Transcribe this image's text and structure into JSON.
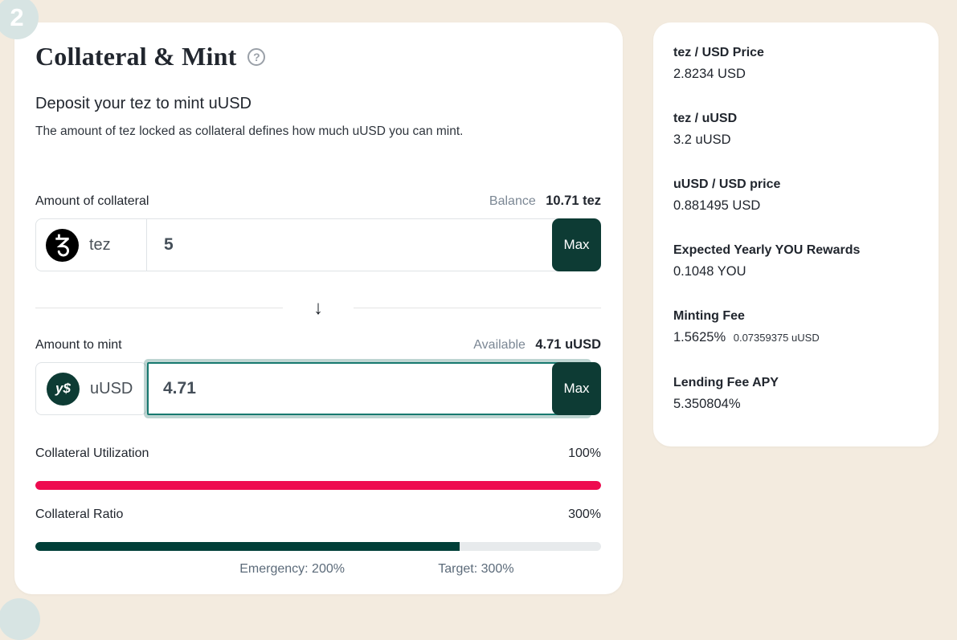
{
  "page": {
    "step_badge": "2"
  },
  "icons": {
    "help_glyph": "?",
    "divider_arrow": "↓",
    "spinner_up": "▲",
    "spinner_down": "▼"
  },
  "main_card": {
    "title": "Collateral & Mint",
    "subtitle": "Deposit your tez to mint uUSD",
    "description": "The amount of tez locked as collateral defines how much uUSD you can mint.",
    "collateral": {
      "label": "Amount of collateral",
      "balance_label": "Balance",
      "balance_value": "10.71 tez",
      "token_symbol": "tez",
      "input_value": "5",
      "max_label": "Max"
    },
    "mint": {
      "label": "Amount to mint",
      "available_label": "Available",
      "available_value": "4.71 uUSD",
      "token_symbol": "uUSD",
      "token_logo_text": "y$",
      "input_value": "4.71",
      "max_label": "Max"
    },
    "utilization": {
      "label": "Collateral Utilization",
      "value": "100%",
      "percent_fill": 100,
      "bar_color": "#ee0b4f"
    },
    "ratio": {
      "label": "Collateral Ratio",
      "value": "300%",
      "percent_fill": 75,
      "bar_color": "#003f38",
      "emergency_label": "Emergency: 200%",
      "target_label": "Target: 300%",
      "emergency_pos_percent": 45.4,
      "target_pos_percent": 77.9
    }
  },
  "info_card": {
    "items": [
      {
        "label": "tez / USD Price",
        "value": "2.8234 USD"
      },
      {
        "label": "tez / uUSD",
        "value": "3.2 uUSD"
      },
      {
        "label": "uUSD / USD price",
        "value": "0.881495 USD"
      },
      {
        "label": "Expected Yearly YOU Rewards",
        "value": "0.1048 YOU"
      },
      {
        "label": "Minting Fee",
        "value": "1.5625%",
        "value_secondary": "0.07359375 uUSD"
      },
      {
        "label": "Lending Fee APY",
        "value": "5.350804%"
      }
    ]
  },
  "colors": {
    "background": "#f3ebdf",
    "card": "#ffffff",
    "accent_dark_green": "#0d3b34",
    "focus_teal": "#17796f",
    "utilization_red": "#ee0b4f",
    "ratio_green": "#003f38",
    "badge_blue": "#d7e4e3",
    "track_gray": "#e7eaec"
  }
}
